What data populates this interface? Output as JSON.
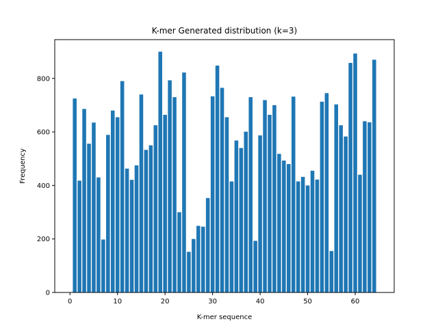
{
  "chart_data": {
    "type": "bar",
    "title": "K-mer Generated distribution (k=3)",
    "xlabel": "K-mer sequence",
    "ylabel": "Frequency",
    "xlim": [
      -3.2,
      68.2
    ],
    "ylim": [
      0,
      945
    ],
    "xticks": [
      0,
      10,
      20,
      30,
      40,
      50,
      60
    ],
    "yticks": [
      0,
      200,
      400,
      600,
      800
    ],
    "grid": false,
    "bar_color": "#1f77b4",
    "x": [
      1,
      2,
      3,
      4,
      5,
      6,
      7,
      8,
      9,
      10,
      11,
      12,
      13,
      14,
      15,
      16,
      17,
      18,
      19,
      20,
      21,
      22,
      23,
      24,
      25,
      26,
      27,
      28,
      29,
      30,
      31,
      32,
      33,
      34,
      35,
      36,
      37,
      38,
      39,
      40,
      41,
      42,
      43,
      44,
      45,
      46,
      47,
      48,
      49,
      50,
      51,
      52,
      53,
      54,
      55,
      56,
      57,
      58,
      59,
      60,
      61,
      62,
      63,
      64
    ],
    "values": [
      725,
      418,
      686,
      556,
      635,
      430,
      198,
      589,
      680,
      655,
      790,
      463,
      421,
      475,
      740,
      533,
      550,
      625,
      900,
      664,
      793,
      730,
      300,
      822,
      152,
      200,
      249,
      246,
      353,
      733,
      848,
      765,
      655,
      415,
      568,
      540,
      601,
      730,
      193,
      587,
      719,
      664,
      700,
      518,
      493,
      480,
      732,
      415,
      432,
      400,
      455,
      422,
      713,
      745,
      155,
      703,
      625,
      583,
      858,
      893,
      440,
      640,
      636,
      870
    ]
  }
}
